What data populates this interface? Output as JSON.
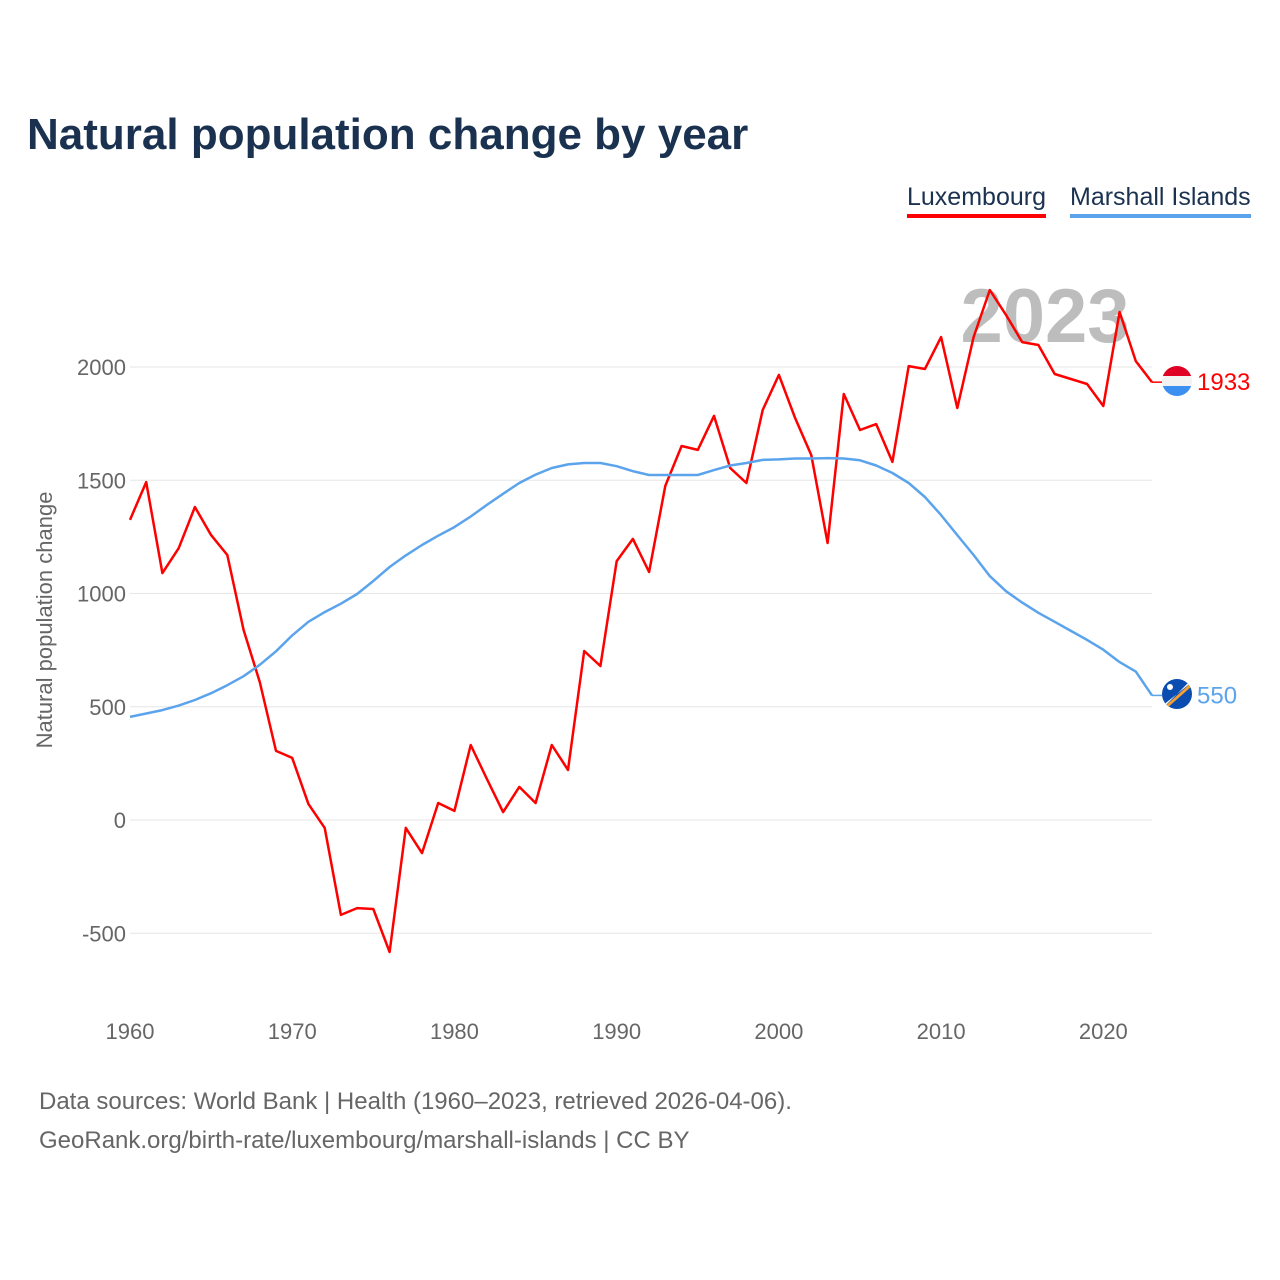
{
  "chart_data": {
    "type": "line",
    "title": "Natural population change by year",
    "xlabel": "",
    "ylabel": "Natural population change",
    "xlim": [
      1960,
      2023
    ],
    "ylim": [
      -800,
      2450
    ],
    "yticks": [
      -500,
      0,
      500,
      1000,
      1500,
      2000
    ],
    "xticks": [
      1960,
      1970,
      1980,
      1990,
      2000,
      2010,
      2020
    ],
    "grid": true,
    "legend_placement": "top-right",
    "year_label": "2023",
    "x": [
      1960,
      1961,
      1962,
      1963,
      1964,
      1965,
      1966,
      1967,
      1968,
      1969,
      1970,
      1971,
      1972,
      1973,
      1974,
      1975,
      1976,
      1977,
      1978,
      1979,
      1980,
      1981,
      1982,
      1983,
      1984,
      1985,
      1986,
      1987,
      1988,
      1989,
      1990,
      1991,
      1992,
      1993,
      1994,
      1995,
      1996,
      1997,
      1998,
      1999,
      2000,
      2001,
      2002,
      2003,
      2004,
      2005,
      2006,
      2007,
      2008,
      2009,
      2010,
      2011,
      2012,
      2013,
      2014,
      2015,
      2016,
      2017,
      2018,
      2019,
      2020,
      2021,
      2022,
      2023
    ],
    "series": [
      {
        "name": "Luxembourg",
        "color": "#ff0000",
        "end_label": "1933",
        "values": [
          1325,
          1492,
          1090,
          1200,
          1382,
          1258,
          1170,
          839,
          609,
          305,
          274,
          71,
          -35,
          -419,
          -389,
          -393,
          -583,
          -35,
          -146,
          75,
          40,
          331,
          181,
          35,
          146,
          75,
          331,
          221,
          746,
          680,
          1143,
          1241,
          1095,
          1475,
          1651,
          1634,
          1784,
          1554,
          1488,
          1810,
          1965,
          1775,
          1611,
          1223,
          1881,
          1722,
          1748,
          1581,
          2004,
          1991,
          2132,
          1819,
          2132,
          2340,
          2230,
          2110,
          2097,
          1969,
          1947,
          1925,
          1828,
          2243,
          2026,
          1933
        ]
      },
      {
        "name": "Marshall Islands",
        "color": "#5ba4ec",
        "end_label": "550",
        "values": [
          455,
          470,
          485,
          505,
          530,
          560,
          595,
          635,
          685,
          745,
          815,
          875,
          918,
          955,
          998,
          1055,
          1117,
          1168,
          1214,
          1255,
          1293,
          1340,
          1391,
          1440,
          1488,
          1525,
          1554,
          1570,
          1576,
          1576,
          1562,
          1540,
          1523,
          1523,
          1523,
          1523,
          1545,
          1565,
          1576,
          1590,
          1592,
          1596,
          1596,
          1598,
          1596,
          1588,
          1565,
          1532,
          1488,
          1426,
          1346,
          1258,
          1170,
          1077,
          1010,
          960,
          915,
          875,
          835,
          795,
          752,
          697,
          655,
          550
        ]
      }
    ]
  },
  "footer": {
    "line1": "Data sources: World Bank | Health (1960–2023, retrieved 2026-04-06).",
    "line2": "GeoRank.org/birth-rate/luxembourg/marshall-islands | CC BY"
  }
}
